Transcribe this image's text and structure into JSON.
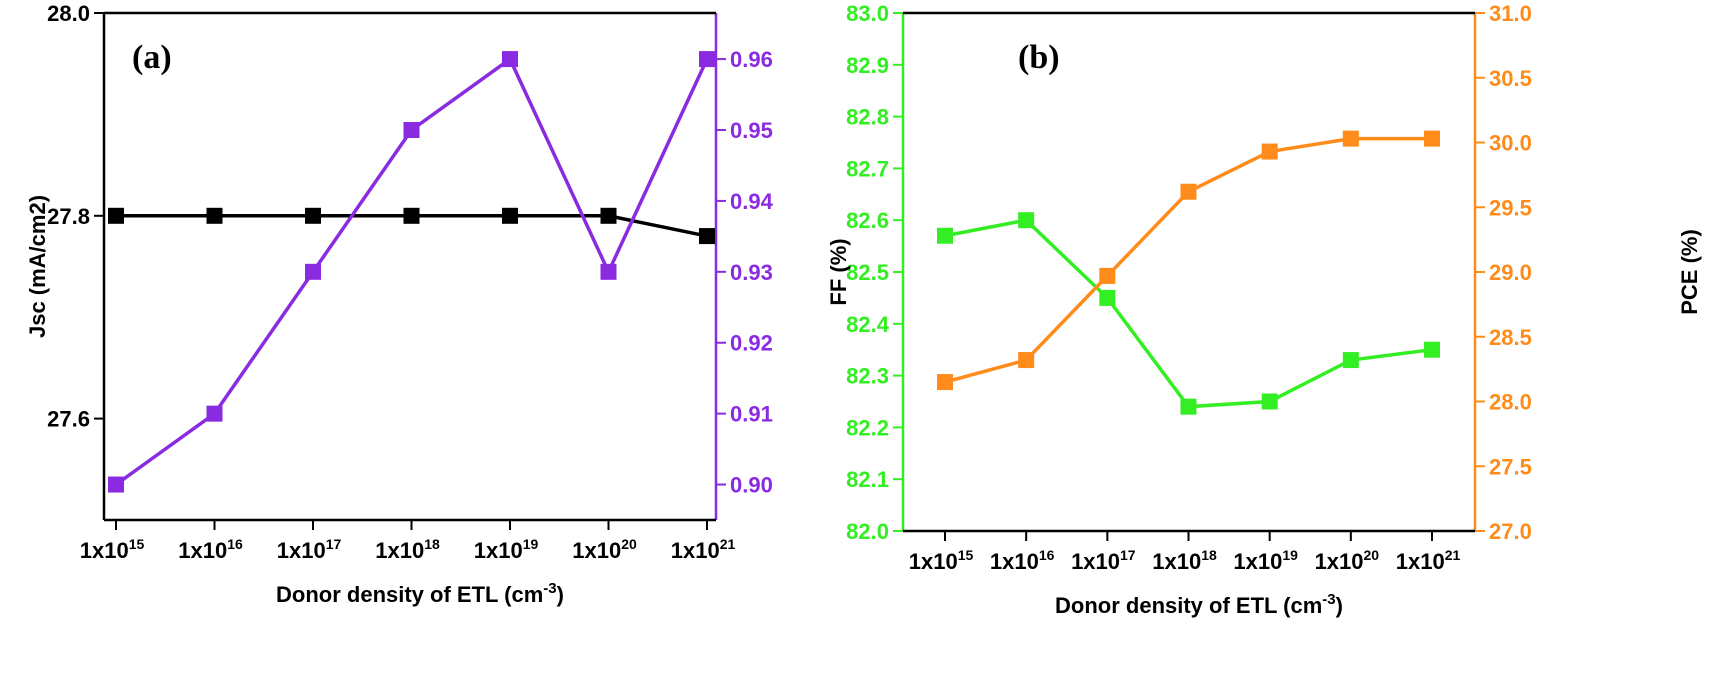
{
  "chart_data": [
    {
      "type": "line",
      "panel_label": "(a)",
      "xlabel_base": "Donor density of ETL (cm",
      "xlabel_sup": "-3",
      "xlabel_tail": ")",
      "categories": [
        {
          "base": "1x10",
          "exp": "15"
        },
        {
          "base": "1x10",
          "exp": "16"
        },
        {
          "base": "1x10",
          "exp": "17"
        },
        {
          "base": "1x10",
          "exp": "18"
        },
        {
          "base": "1x10",
          "exp": "19"
        },
        {
          "base": "1x10",
          "exp": "20"
        },
        {
          "base": "1x10",
          "exp": "21"
        }
      ],
      "ylabel_left": "Jsc (mA/cm2)",
      "ylabel_right": "",
      "ylim_left": [
        27.5,
        28.0
      ],
      "yticks_left": [
        "27.6",
        "27.8",
        "28.0"
      ],
      "yticks_left_values": [
        27.6,
        27.8,
        28.0
      ],
      "ylim_right": [
        0.895,
        0.9665
      ],
      "yticks_right": [
        "0.90",
        "0.91",
        "0.92",
        "0.93",
        "0.94",
        "0.95",
        "0.96"
      ],
      "yticks_right_values": [
        0.9,
        0.91,
        0.92,
        0.93,
        0.94,
        0.95,
        0.96
      ],
      "grid": false,
      "series": [
        {
          "axis": "left",
          "color": "#000000",
          "marker": "square",
          "values": [
            27.8,
            27.8,
            27.8,
            27.8,
            27.8,
            27.8,
            27.78
          ]
        },
        {
          "axis": "right",
          "color": "#8a2be2",
          "marker": "square",
          "values": [
            0.9,
            0.91,
            0.93,
            0.95,
            0.96,
            0.93,
            0.96
          ]
        }
      ],
      "colors": {
        "left_axis": "#000000",
        "right_axis": "#8a2be2"
      }
    },
    {
      "type": "line",
      "panel_label": "(b)",
      "xlabel_base": "Donor density of ETL (cm",
      "xlabel_sup": "-3",
      "xlabel_tail": ")",
      "categories": [
        {
          "base": "1x10",
          "exp": "15"
        },
        {
          "base": "1x10",
          "exp": "16"
        },
        {
          "base": "1x10",
          "exp": "17"
        },
        {
          "base": "1x10",
          "exp": "18"
        },
        {
          "base": "1x10",
          "exp": "19"
        },
        {
          "base": "1x10",
          "exp": "20"
        },
        {
          "base": "1x10",
          "exp": "21"
        }
      ],
      "ylabel_left": "FF (%)",
      "ylabel_right": "PCE (%)",
      "ylim_left": [
        82.0,
        83.0
      ],
      "yticks_left": [
        "82.0",
        "82.1",
        "82.2",
        "82.3",
        "82.4",
        "82.5",
        "82.6",
        "82.7",
        "82.8",
        "82.9",
        "83.0"
      ],
      "yticks_left_values": [
        82.0,
        82.1,
        82.2,
        82.3,
        82.4,
        82.5,
        82.6,
        82.7,
        82.8,
        82.9,
        83.0
      ],
      "ylim_right": [
        27.0,
        31.0
      ],
      "yticks_right": [
        "27.0",
        "27.5",
        "28.0",
        "28.5",
        "29.0",
        "29.5",
        "30.0",
        "30.5",
        "31.0"
      ],
      "yticks_right_values": [
        27.0,
        27.5,
        28.0,
        28.5,
        29.0,
        29.5,
        30.0,
        30.5,
        31.0
      ],
      "grid": false,
      "series": [
        {
          "axis": "left",
          "color": "#33ee22",
          "marker": "square",
          "values": [
            82.57,
            82.6,
            82.45,
            82.24,
            82.25,
            82.33,
            82.35
          ]
        },
        {
          "axis": "right",
          "color": "#ff8c1a",
          "marker": "square",
          "values": [
            28.15,
            28.32,
            28.97,
            29.62,
            29.93,
            30.03,
            30.03
          ]
        }
      ],
      "colors": {
        "left_axis": "#33ee22",
        "right_axis": "#ff8c1a"
      }
    }
  ]
}
